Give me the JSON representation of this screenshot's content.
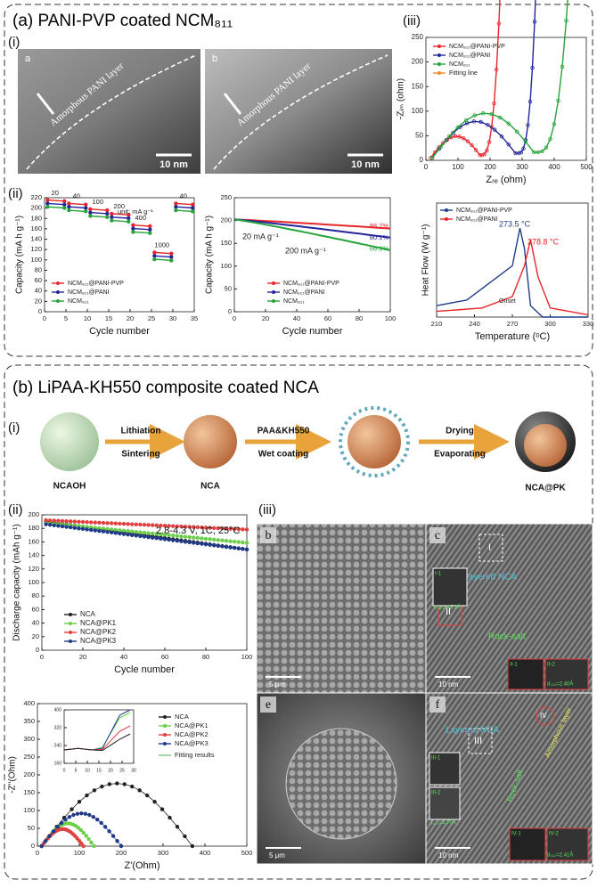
{
  "panel_a": {
    "title": "(a) PANI-PVP coated NCM₈₁₁",
    "i": {
      "label": "(i)",
      "images": [
        {
          "letter": "a",
          "caption": "Amorphous PANI layer",
          "scale": "10 nm"
        },
        {
          "letter": "b",
          "caption": "Amorphous PANI layer",
          "scale": "10 nm"
        }
      ]
    },
    "ii": {
      "label": "(ii)",
      "rate": {
        "ylabel": "Capacity (mA h g⁻¹)",
        "xlabel": "Cycle number",
        "unit": "unit: mA g⁻¹",
        "rates": [
          "20",
          "40",
          "100",
          "200",
          "400",
          "1000",
          "40"
        ],
        "xticks": [
          0,
          5,
          10,
          15,
          20,
          25,
          30,
          35
        ],
        "yticks": [
          0,
          20,
          40,
          60,
          80,
          100,
          120,
          140,
          160,
          180,
          200,
          220
        ],
        "legend": [
          "NCM₈₁₁@PANI-PVP",
          "NCM₈₁₁@PANI",
          "NCM₈₁₁"
        ],
        "colors": [
          "#e8252a",
          "#24279a",
          "#26a33a"
        ]
      },
      "cycling": {
        "ylabel": "Capacity (mA h g⁻¹)",
        "xlabel": "Cycle number",
        "low_rate": "20 mA g⁻¹",
        "high_rate": "200 mA g⁻¹",
        "retentions": [
          "88.7%",
          "80.1%",
          "66.3%"
        ],
        "xticks": [
          0,
          20,
          40,
          60,
          80,
          100
        ],
        "yticks": [
          0,
          50,
          100,
          150,
          200,
          250
        ],
        "legend": [
          "NCM₈₁₁@PANI-PVP",
          "NCM₈₁₁@PANI",
          "NCM₈₁₁"
        ],
        "colors": [
          "#e8252a",
          "#24279a",
          "#26a33a"
        ]
      }
    },
    "iii": {
      "label": "(iii)",
      "eis": {
        "ylabel": "-Zᵢₘ (ohm)",
        "xlabel": "Zᵣₑ (ohm)",
        "xticks": [
          0,
          100,
          200,
          300,
          400,
          500
        ],
        "yticks": [
          0,
          50,
          100,
          150,
          200,
          250
        ],
        "legend": [
          "NCM₈₁₁@PANI-PVP",
          "NCM₈₁₁@PANI",
          "NCM₈₁₁",
          "Fitting line"
        ],
        "colors": [
          "#e8252a",
          "#24279a",
          "#26a33a",
          "#f08a2c"
        ]
      },
      "dsc": {
        "ylabel": "Heat Flow (W g⁻¹)",
        "xlabel": "Temperature (ᵒC)",
        "xticks": [
          210,
          240,
          270,
          300,
          330
        ],
        "peak_1": "273.5 °C",
        "peak_2": "278.8 °C",
        "onset": "Onset",
        "legend": [
          "NCM₈₁₁@PANI-PVP",
          "NCM₈₁₁@PANI"
        ],
        "colors": [
          "#1f3f8a",
          "#e8252a"
        ]
      }
    }
  },
  "panel_b": {
    "title": "(b) LiPAA-KH550 composite coated NCA",
    "i": {
      "label": "(i)",
      "precursor": "NCAOH",
      "step_1_top": "Lithiation",
      "step_1_bottom": "Sintering",
      "intermediate": "NCA",
      "step_2_top": "PAA&KH550",
      "step_2_bottom": "Wet coating",
      "step_3_top": "Drying",
      "step_3_bottom": "Evaporating",
      "product": "NCA@PK"
    },
    "ii": {
      "label": "(ii)",
      "cycling": {
        "condition": "2.8-4.3 V, 1C, 25°C",
        "ylabel": "Discharge capacity (mAh g⁻¹)",
        "xlabel": "Cycle number",
        "xticks": [
          0,
          20,
          40,
          60,
          80,
          100
        ],
        "yticks": [
          0,
          20,
          40,
          60,
          80,
          100,
          120,
          140,
          160,
          180,
          200
        ],
        "legend": [
          "NCA",
          "NCA@PK1",
          "NCA@PK2",
          "NCA@PK3"
        ],
        "colors": [
          "#222222",
          "#6ccf4a",
          "#e04040",
          "#203a8a"
        ]
      },
      "eis": {
        "ylabel": "-Z''(Ohm)",
        "xlabel": "Z'(Ohm)",
        "xticks": [
          0,
          100,
          200,
          300,
          400,
          500
        ],
        "yticks": [
          0,
          50,
          100,
          150,
          200,
          250,
          300,
          350,
          400
        ],
        "inset_xticks": [
          0,
          5,
          10,
          15,
          20,
          25,
          30
        ],
        "inset_yticks": [
          160,
          240,
          320,
          400
        ],
        "legend": [
          "NCA",
          "NCA@PK1",
          "NCA@PK2",
          "NCA@PK3"
        ],
        "fitting": "Fitting results",
        "colors": [
          "#222222",
          "#6ccf4a",
          "#e04040",
          "#203a8a"
        ]
      }
    },
    "iii": {
      "label": "(iii)",
      "b": {
        "letter": "b",
        "scale": "5 μm"
      },
      "c": {
        "letter": "c",
        "region_1": "I",
        "region_2": "II",
        "layer": "Layered NCA",
        "rock": "Rock-salt",
        "scale": "10 nm",
        "fft_1": "I-1",
        "d_1": "d₀₀₃=4.72Å",
        "fft_2": "II-1",
        "fft_3": "II-2",
        "d_2": "d₀₁₂=2.40Å"
      },
      "e": {
        "letter": "e",
        "scale": "5 μm"
      },
      "f": {
        "letter": "f",
        "region_1": "IV",
        "region_2": "III",
        "layer": "Layered NCA",
        "rock": "Rock-salt",
        "amorphous": "Amorphous layer",
        "scale": "10 nm",
        "fft_1": "III-1",
        "fft_2": "III-2",
        "d_1": "d₀₀₃=4.70Å",
        "fft_3": "IV-1",
        "fft_4": "IV-2",
        "d_2": "d₀₁₂=2.41Å"
      }
    }
  }
}
